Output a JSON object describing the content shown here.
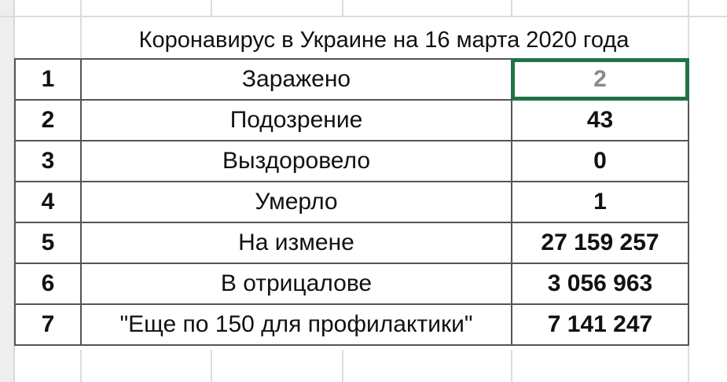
{
  "title": "Коронавирус в Украине на 16 марта 2020 года",
  "selection_color": "#217346",
  "rows": [
    {
      "n": "1",
      "label": "Заражено",
      "value": "2"
    },
    {
      "n": "2",
      "label": "Подозрение",
      "value": "43"
    },
    {
      "n": "3",
      "label": "Выздоровело",
      "value": "0"
    },
    {
      "n": "4",
      "label": "Умерло",
      "value": "1"
    },
    {
      "n": "5",
      "label": "На измене",
      "value": "27 159 257"
    },
    {
      "n": "6",
      "label": "В отрицалове",
      "value": "3 056 963"
    },
    {
      "n": "7",
      "label": "\"Еще по 150 для профилактики\"",
      "value": "7 141 247"
    }
  ]
}
